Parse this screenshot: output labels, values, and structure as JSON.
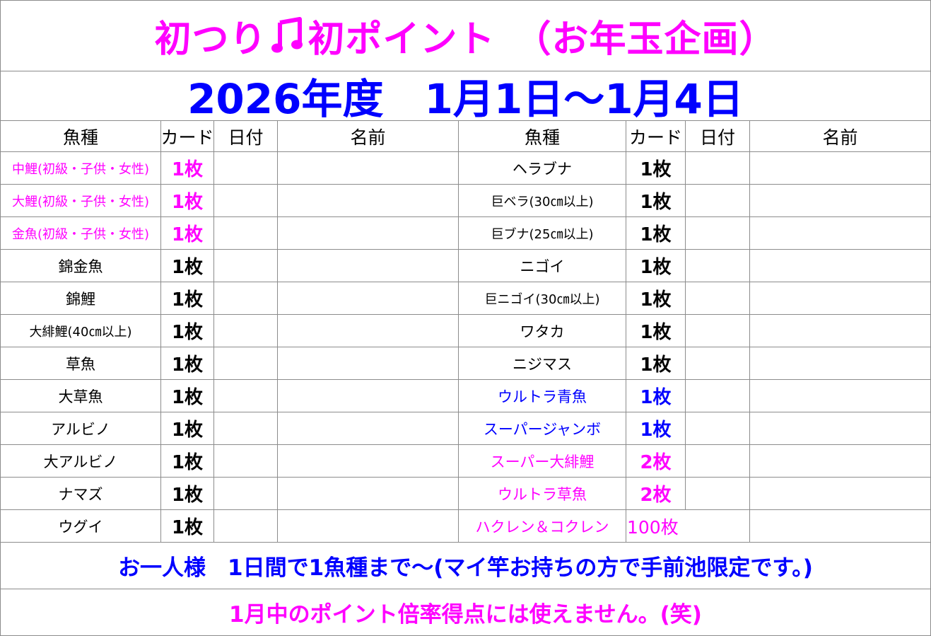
{
  "title": {
    "left": "初つり",
    "right": "初ポイント　（お年玉企画）",
    "icon": "music-note-icon"
  },
  "period": "2026年度　1月1日～1月4日",
  "headers": {
    "fish": "魚種",
    "card": "カード",
    "date": "日付",
    "name": "名前"
  },
  "colors": {
    "magenta": "#ff00ff",
    "blue": "#0000ff",
    "black": "#000000",
    "grid": "#8c8c8c"
  },
  "left_rows": [
    {
      "fish": "中鯉(初級・子供・女性)",
      "card": "1枚",
      "color": "magenta"
    },
    {
      "fish": "大鯉(初級・子供・女性)",
      "card": "1枚",
      "color": "magenta"
    },
    {
      "fish": "金魚(初級・子供・女性)",
      "card": "1枚",
      "color": "magenta"
    },
    {
      "fish": "錦金魚",
      "card": "1枚",
      "color": "black"
    },
    {
      "fish": "錦鯉",
      "card": "1枚",
      "color": "black"
    },
    {
      "fish": "大緋鯉(40㎝以上)",
      "card": "1枚",
      "color": "black"
    },
    {
      "fish": "草魚",
      "card": "1枚",
      "color": "black"
    },
    {
      "fish": "大草魚",
      "card": "1枚",
      "color": "black"
    },
    {
      "fish": "アルビノ",
      "card": "1枚",
      "color": "black"
    },
    {
      "fish": "大アルビノ",
      "card": "1枚",
      "color": "black"
    },
    {
      "fish": "ナマズ",
      "card": "1枚",
      "color": "black"
    },
    {
      "fish": "ウグイ",
      "card": "1枚",
      "color": "black"
    }
  ],
  "right_rows": [
    {
      "fish": "ヘラブナ",
      "card": "1枚",
      "color": "black"
    },
    {
      "fish": "巨ベラ(30㎝以上)",
      "card": "1枚",
      "color": "black"
    },
    {
      "fish": "巨ブナ(25㎝以上)",
      "card": "1枚",
      "color": "black"
    },
    {
      "fish": "ニゴイ",
      "card": "1枚",
      "color": "black"
    },
    {
      "fish": "巨ニゴイ(30㎝以上)",
      "card": "1枚",
      "color": "black"
    },
    {
      "fish": "ワタカ",
      "card": "1枚",
      "color": "black"
    },
    {
      "fish": "ニジマス",
      "card": "1枚",
      "color": "black"
    },
    {
      "fish": "ウルトラ青魚",
      "card": "1枚",
      "color": "blue"
    },
    {
      "fish": "スーパージャンボ",
      "card": "1枚",
      "color": "blue"
    },
    {
      "fish": "スーパー大緋鯉",
      "card": "2枚",
      "color": "magenta"
    },
    {
      "fish": "ウルトラ草魚",
      "card": "2枚",
      "color": "magenta"
    },
    {
      "fish": "ハクレン＆コクレン",
      "card": "100枚",
      "color": "magenta"
    }
  ],
  "footer": {
    "line1": "お一人様　1日間で1魚種まで～(マイ竿お持ちの方で手前池限定です。)",
    "line2": "1月中のポイント倍率得点には使えません。(笑)"
  }
}
